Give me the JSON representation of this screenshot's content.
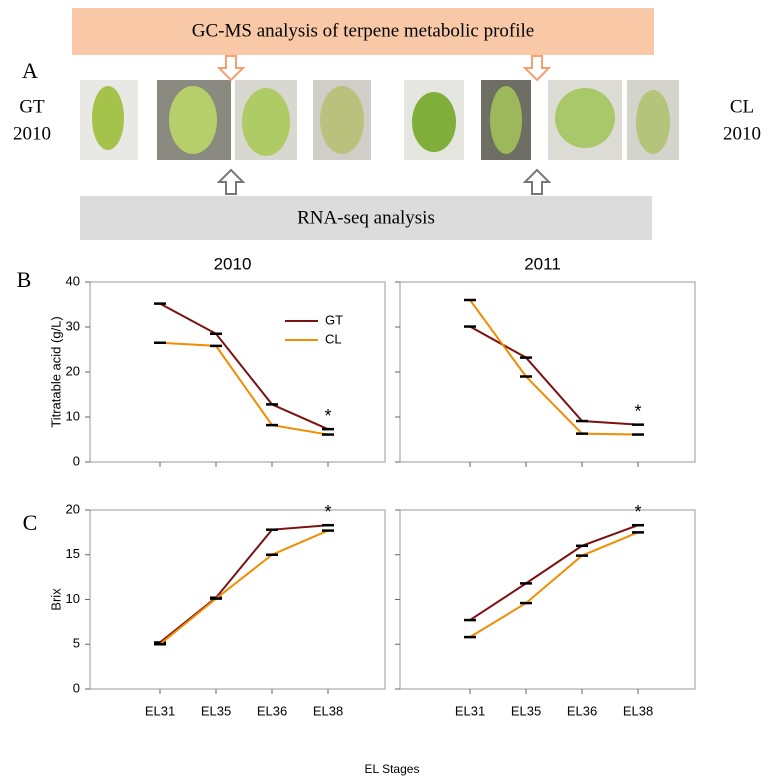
{
  "figure": {
    "panel_labels": [
      "A",
      "B",
      "C"
    ],
    "banner_top": "GC-MS analysis of terpene metabolic profile",
    "banner_bottom": "RNA-seq analysis",
    "left_label": [
      "GT",
      "2010"
    ],
    "right_label": [
      "CL",
      "2010"
    ],
    "xlabel": "EL Stages"
  },
  "chart_data": [
    {
      "type": "line",
      "title": "2010",
      "ylabel": "Titratable acid (g/L)",
      "ylim": [
        0,
        40
      ],
      "yticks": [
        0,
        10,
        20,
        30,
        40
      ],
      "show_ytick_labels": true,
      "legend": "upper right",
      "series": [
        {
          "name": "GT",
          "color": "#7b1111",
          "values": [
            35.2,
            28.5,
            12.8,
            7.3
          ]
        },
        {
          "name": "CL",
          "color": "#f28c00",
          "values": [
            26.5,
            25.8,
            8.2,
            6.1
          ]
        }
      ],
      "annotations": [
        {
          "text": "*",
          "index": 3
        }
      ]
    },
    {
      "type": "line",
      "title": "2011",
      "ylim": [
        0,
        40
      ],
      "yticks": [
        0,
        10,
        20,
        30,
        40
      ],
      "show_ytick_labels": false,
      "series": [
        {
          "color": "#7b1111",
          "values": [
            30.1,
            23.2,
            9.1,
            8.3
          ]
        },
        {
          "color": "#f28c00",
          "values": [
            36,
            19,
            6.3,
            6.1
          ]
        }
      ],
      "annotations": [
        {
          "text": "*",
          "index": 3
        }
      ]
    },
    {
      "type": "line",
      "ylabel": "Brix",
      "ylim": [
        0,
        20
      ],
      "yticks": [
        0,
        5,
        10,
        15,
        20
      ],
      "show_ytick_labels": true,
      "categories": [
        "EL31",
        "EL35",
        "EL36",
        "EL38"
      ],
      "series": [
        {
          "color": "#7b1111",
          "values": [
            5.2,
            10.2,
            17.8,
            18.3
          ]
        },
        {
          "color": "#f28c00",
          "values": [
            5.0,
            10.1,
            15.0,
            17.7
          ]
        }
      ],
      "annotations": [
        {
          "text": "*",
          "index": 3
        }
      ]
    },
    {
      "type": "line",
      "ylim": [
        0,
        20
      ],
      "yticks": [
        0,
        5,
        10,
        15,
        20
      ],
      "show_ytick_labels": false,
      "categories": [
        "EL31",
        "EL35",
        "EL36",
        "EL38"
      ],
      "series": [
        {
          "color": "#7b1111",
          "values": [
            7.7,
            11.8,
            16.0,
            18.3
          ]
        },
        {
          "color": "#f28c00",
          "values": [
            5.8,
            9.6,
            14.9,
            17.5
          ]
        }
      ],
      "annotations": [
        {
          "text": "*",
          "index": 3
        }
      ]
    }
  ]
}
